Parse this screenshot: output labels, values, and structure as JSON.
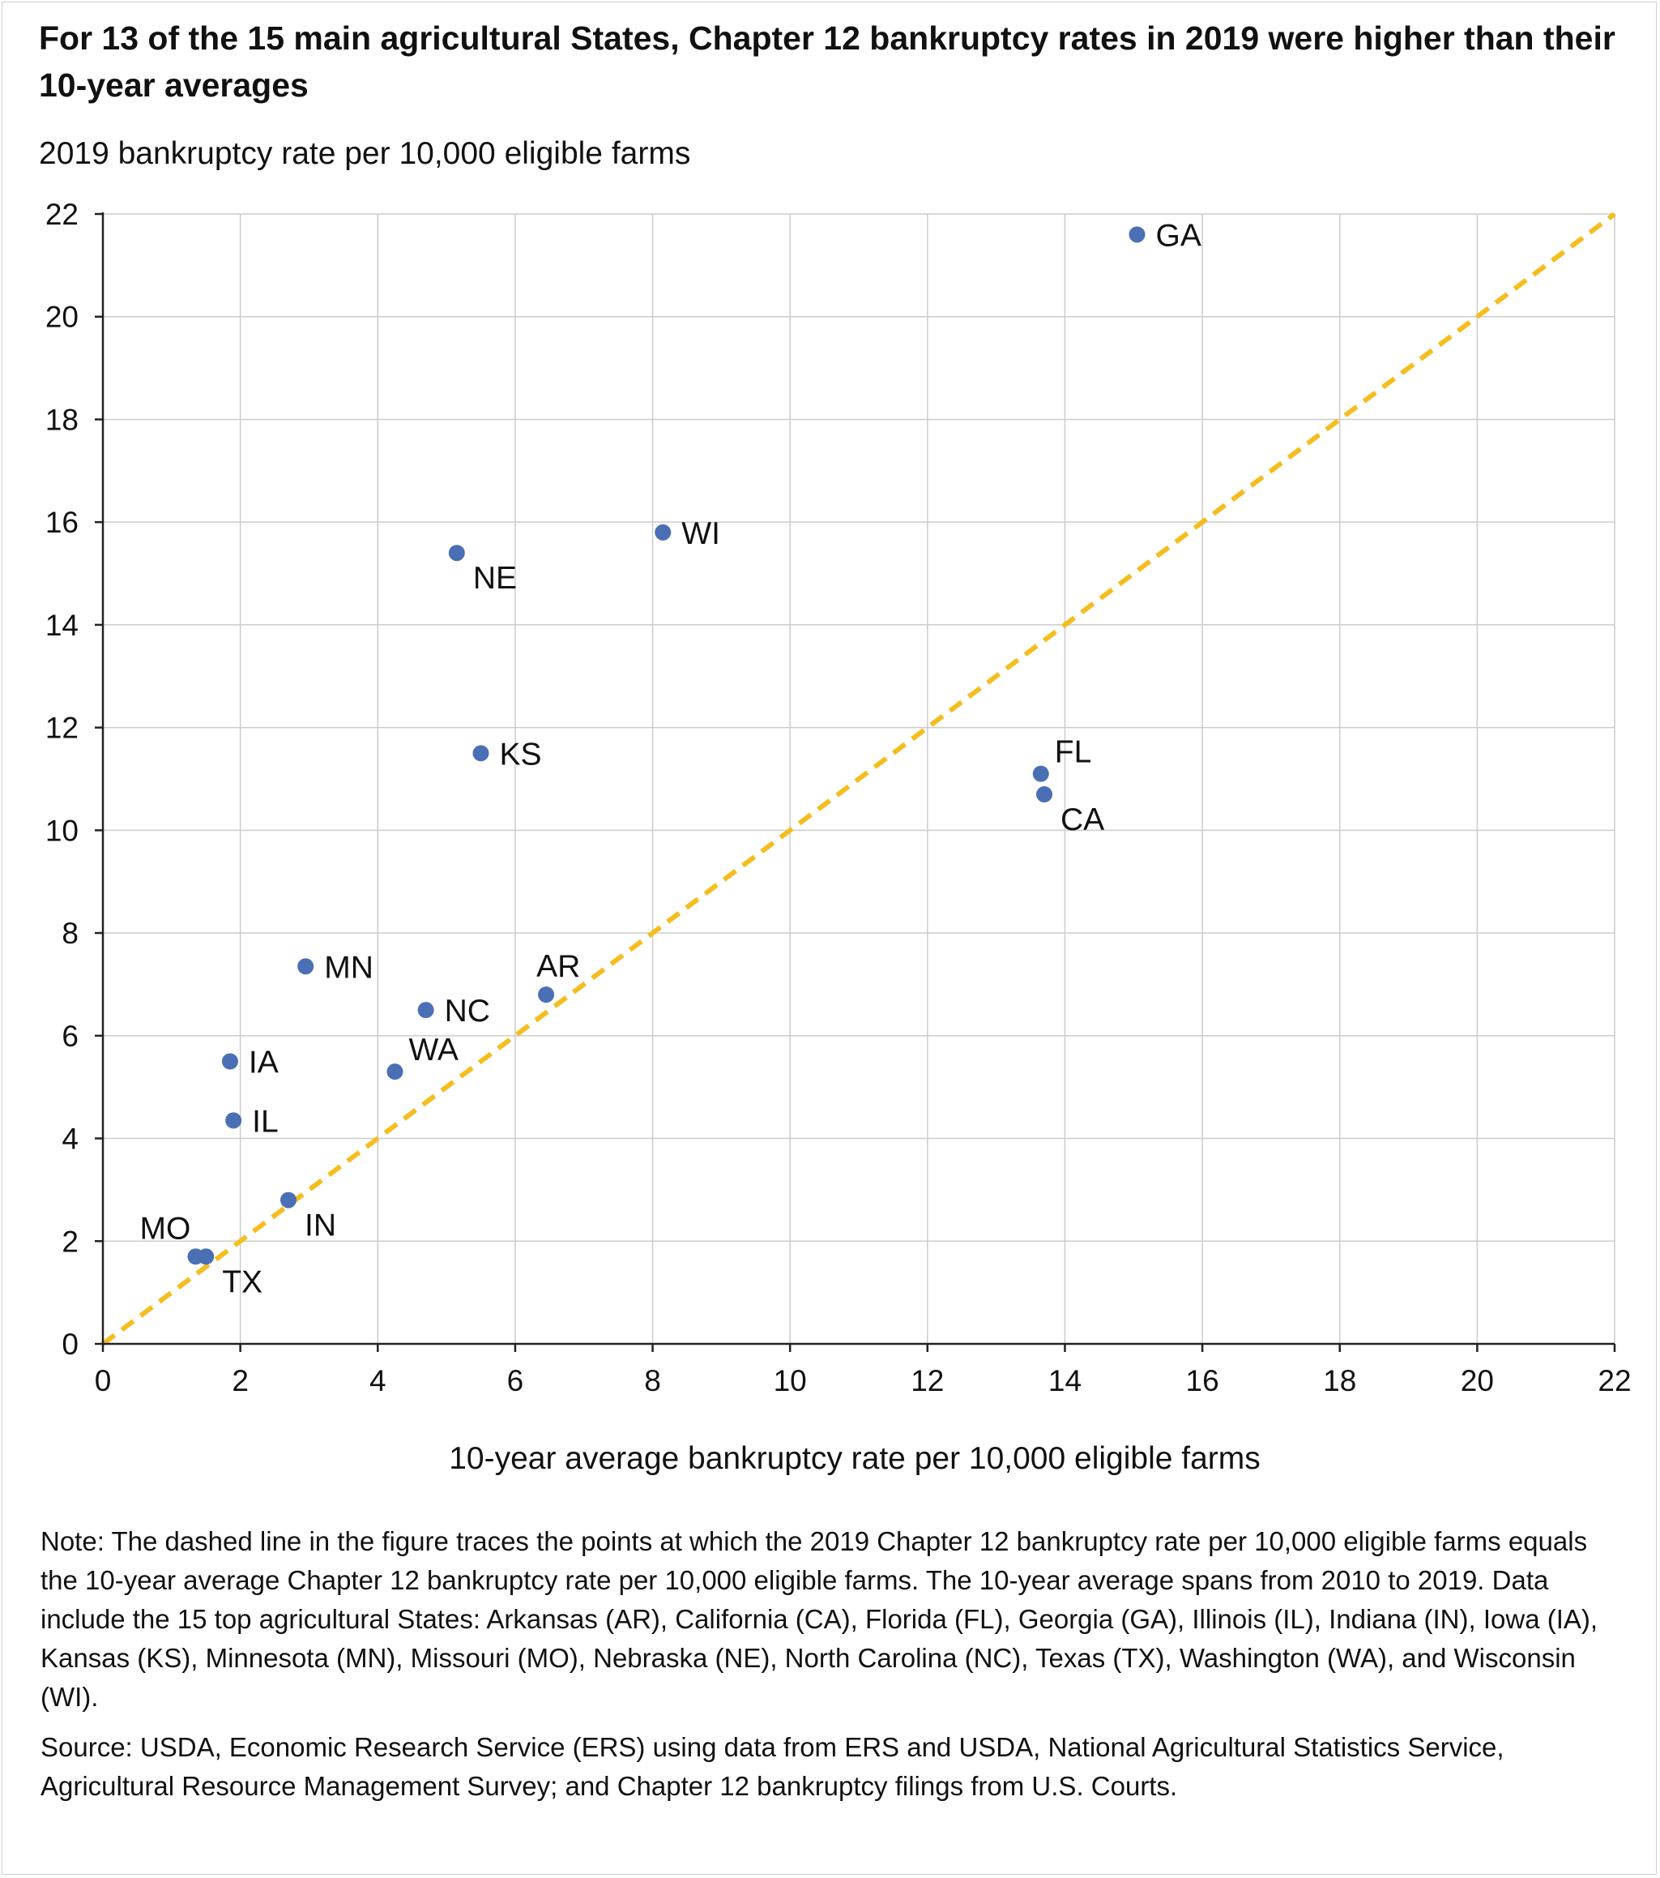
{
  "title": "For 13 of the 15 main agricultural States, Chapter 12 bankruptcy rates in 2019 were higher than their 10-year averages",
  "note": "Note: The dashed line in the figure traces the points at which the 2019 Chapter 12 bankruptcy rate per 10,000 eligible farms equals the 10-year average Chapter 12 bankruptcy rate per 10,000 eligible farms. The 10-year average spans from 2010 to 2019. Data include the 15 top agricultural States: Arkansas (AR), California (CA), Florida (FL), Georgia (GA), Illinois (IL), Indiana (IN), Iowa (IA), Kansas (KS), Minnesota (MN), Missouri (MO), Nebraska (NE), North Carolina (NC), Texas (TX), Washington (WA), and Wisconsin (WI).",
  "source": "Source: USDA, Economic Research Service (ERS) using data from ERS and USDA, National Agricultural Statistics Service, Agricultural Resource Management Survey; and Chapter 12 bankruptcy filings from U.S. Courts.",
  "colors": {
    "points": "#4a6fb5",
    "reference_line": "#f5bd1f",
    "grid": "#cccccc",
    "axis": "#222222"
  },
  "chart_data": {
    "type": "scatter",
    "xlabel": "10-year average bankruptcy rate per 10,000 eligible farms",
    "ylabel": "2019 bankruptcy rate per 10,000 eligible farms",
    "xlim": [
      0,
      22
    ],
    "ylim": [
      0,
      22
    ],
    "xticks": [
      0,
      2,
      4,
      6,
      8,
      10,
      12,
      14,
      16,
      18,
      20,
      22
    ],
    "yticks": [
      0,
      2,
      4,
      6,
      8,
      10,
      12,
      14,
      16,
      18,
      20,
      22
    ],
    "grid": true,
    "reference_line": {
      "style": "dashed",
      "from": [
        0,
        0
      ],
      "to": [
        22,
        22
      ]
    },
    "points": [
      {
        "label": "GA",
        "x": 15.05,
        "y": 21.6,
        "label_pos": "right"
      },
      {
        "label": "WI",
        "x": 8.15,
        "y": 15.8,
        "label_pos": "right"
      },
      {
        "label": "NE",
        "x": 5.15,
        "y": 15.4,
        "label_pos": "right-below"
      },
      {
        "label": "KS",
        "x": 5.5,
        "y": 11.5,
        "label_pos": "right"
      },
      {
        "label": "FL",
        "x": 13.65,
        "y": 11.1,
        "label_pos": "right-above"
      },
      {
        "label": "CA",
        "x": 13.7,
        "y": 10.7,
        "label_pos": "right-below"
      },
      {
        "label": "MN",
        "x": 2.95,
        "y": 7.35,
        "label_pos": "right"
      },
      {
        "label": "AR",
        "x": 6.45,
        "y": 6.8,
        "label_pos": "above"
      },
      {
        "label": "NC",
        "x": 4.7,
        "y": 6.5,
        "label_pos": "right"
      },
      {
        "label": "IA",
        "x": 1.85,
        "y": 5.5,
        "label_pos": "right"
      },
      {
        "label": "WA",
        "x": 4.25,
        "y": 5.3,
        "label_pos": "right-above"
      },
      {
        "label": "IL",
        "x": 1.9,
        "y": 4.35,
        "label_pos": "right"
      },
      {
        "label": "IN",
        "x": 2.7,
        "y": 2.8,
        "label_pos": "right-below"
      },
      {
        "label": "MO",
        "x": 1.35,
        "y": 1.7,
        "label_pos": "left-above"
      },
      {
        "label": "TX",
        "x": 1.5,
        "y": 1.7,
        "label_pos": "right-below"
      }
    ]
  }
}
